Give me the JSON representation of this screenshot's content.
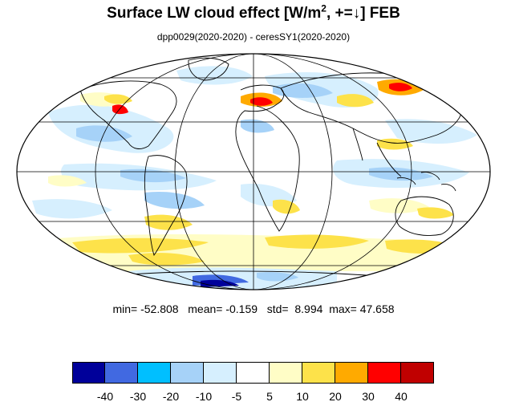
{
  "title": {
    "main": "Surface LW cloud effect [W/m",
    "sup": "2",
    "tail": ", +=↓]  FEB"
  },
  "subtitle": "dpp0029(2020-2020) - ceresSY1(2020-2020)",
  "stats": {
    "min_label": "min=",
    "min": "-52.808",
    "mean_label": "mean=",
    "mean": "-0.159",
    "std_label": "std=",
    "std": "8.994",
    "max_label": "max=",
    "max": "47.658"
  },
  "map": {
    "projection": "Mollweide",
    "background_color": "#ffffff",
    "coastline_color": "#000000",
    "graticule_color": "#000000",
    "dominant_field": "near-zero differences (white to light blue/yellow)",
    "features": [
      {
        "region": "Southern Ocean band",
        "value_class": "10 to 20",
        "color": "#fde24a"
      },
      {
        "region": "Antarctic coast (Weddell/Ross)",
        "value_class": "-40 to -20",
        "color": "#4169e1"
      },
      {
        "region": "Europe / Mediterranean",
        "value_class": "20 to 47",
        "color": "#ff0000"
      },
      {
        "region": "Tropical Pacific",
        "value_class": "-10 to -5",
        "color": "#a6d2f8"
      },
      {
        "region": "Southern Africa",
        "value_class": "10 to 20",
        "color": "#fde24a"
      },
      {
        "region": "Central Asia",
        "value_class": "20 to 30",
        "color": "#ffaa00"
      }
    ]
  },
  "colorbar": {
    "colors": [
      "#00009a",
      "#4169e1",
      "#00bfff",
      "#a6d2f8",
      "#d6effe",
      "#ffffff",
      "#fffdc6",
      "#fde24a",
      "#ffaa00",
      "#ff0000",
      "#c00000"
    ],
    "labels": [
      "-40",
      "-30",
      "-20",
      "-10",
      "-5",
      "5",
      "10",
      "20",
      "30",
      "40"
    ]
  }
}
